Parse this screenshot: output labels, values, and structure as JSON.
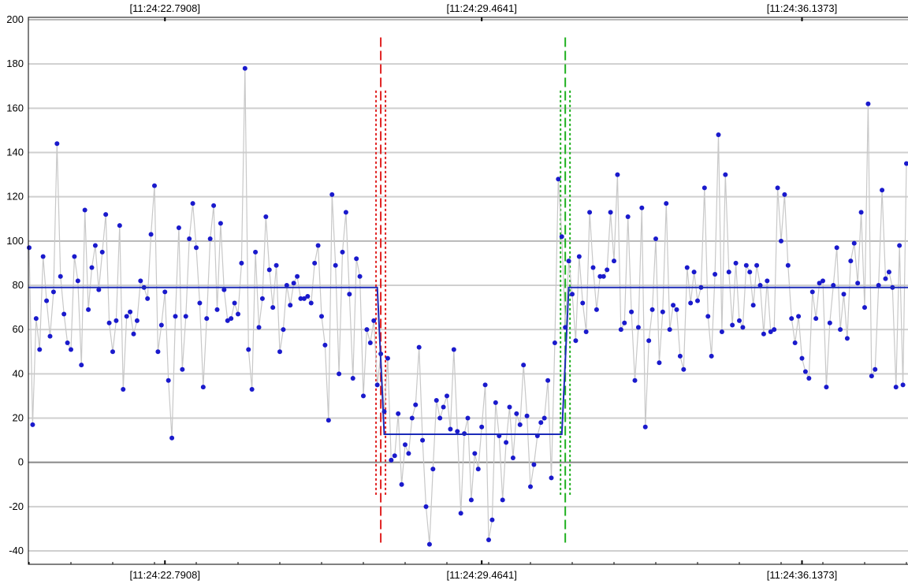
{
  "chart_data": {
    "type": "line",
    "title": "",
    "xlabel": "",
    "ylabel": "",
    "ylim": [
      -40,
      200
    ],
    "grid": true,
    "y_ticks": [
      200,
      180,
      160,
      140,
      120,
      100,
      80,
      60,
      40,
      20,
      0,
      -20,
      -40
    ],
    "x_tick_labels": [
      {
        "label": "[11:24:22.7908]",
        "index": 39
      },
      {
        "label": "[11:24:29.4641]",
        "index": 130
      },
      {
        "label": "[11:24:36.1373]",
        "index": 222
      }
    ],
    "series": [
      {
        "kind": "samples",
        "color": "#1a1acc",
        "line_color": "#c8c8c8",
        "values": [
          97,
          17,
          65,
          51,
          93,
          73,
          57,
          77,
          144,
          84,
          67,
          54,
          51,
          93,
          82,
          44,
          114,
          69,
          88,
          98,
          78,
          95,
          112,
          63,
          50,
          64,
          107,
          33,
          66,
          68,
          58,
          64,
          82,
          79,
          74,
          103,
          125,
          50,
          62,
          77,
          37,
          11,
          66,
          106,
          42,
          66,
          101,
          117,
          97,
          72,
          34,
          65,
          101,
          116,
          69,
          108,
          78,
          64,
          65,
          72,
          67,
          90,
          178,
          51,
          33,
          95,
          61,
          74,
          111,
          87,
          70,
          89,
          50,
          60,
          80,
          71,
          81,
          84,
          74,
          74,
          75,
          72,
          90,
          98,
          66,
          53,
          19,
          121,
          89,
          40,
          95,
          113,
          76,
          38,
          92,
          84,
          30,
          60,
          54,
          64,
          35,
          49,
          23,
          47,
          1,
          3,
          22,
          -10,
          8,
          4,
          20,
          26,
          52,
          10,
          -20,
          -37,
          -3,
          28,
          20,
          25,
          30,
          15,
          51,
          14,
          -23,
          13,
          20,
          -17,
          4,
          -3,
          16,
          35,
          -35,
          -26,
          27,
          12,
          -17,
          9,
          25,
          2,
          22,
          17,
          44,
          21,
          -11,
          -1,
          12,
          18,
          20,
          37,
          -7,
          54,
          128,
          102,
          61,
          91,
          76,
          55,
          93,
          72,
          59,
          113,
          88,
          69,
          84,
          84,
          87,
          113,
          91,
          130,
          60,
          63,
          111,
          68,
          37,
          61,
          115,
          16,
          55,
          69,
          101,
          45,
          68,
          117,
          60,
          71,
          69,
          48,
          42,
          88,
          72,
          86,
          73,
          79,
          124,
          66,
          48,
          85,
          148,
          59,
          130,
          86,
          62,
          90,
          64,
          61,
          89,
          86,
          71,
          89,
          80,
          58,
          82,
          59,
          60,
          124,
          100,
          121,
          89,
          65,
          54,
          66,
          47,
          41,
          38,
          77,
          65,
          81,
          82,
          34,
          63,
          80,
          97,
          60,
          76,
          56,
          91,
          99,
          81,
          113,
          70,
          162,
          39,
          42,
          80,
          123,
          83,
          86,
          79,
          34,
          98,
          35,
          135
        ]
      },
      {
        "kind": "step-fit",
        "color": "#1c2bb8",
        "levels": [
          {
            "from": 0,
            "to": 100,
            "y": 79
          },
          {
            "from": 102,
            "to": 153,
            "y": 12.7
          },
          {
            "from": 155,
            "to": 245,
            "y": 79
          }
        ]
      }
    ],
    "markers": [
      {
        "name": "step-down",
        "color": "#e02020",
        "index": 101,
        "dash_top": 192,
        "dash_bottom": -38,
        "band_top": 168,
        "band_bottom": -15
      },
      {
        "name": "step-up",
        "color": "#20b020",
        "index": 154,
        "dash_top": 192,
        "dash_bottom": -38,
        "band_top": 168,
        "band_bottom": -15
      }
    ]
  }
}
